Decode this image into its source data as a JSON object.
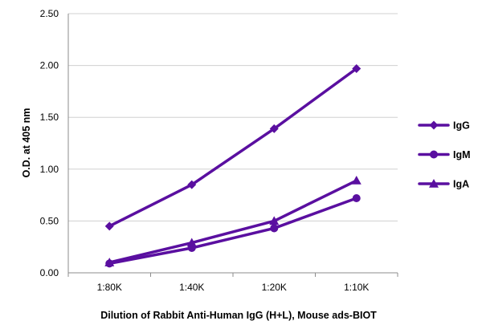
{
  "chart_data": {
    "type": "line",
    "title": "",
    "xlabel": "Dilution of Rabbit Anti-Human IgG (H+L), Mouse ads-BIOT",
    "ylabel": "O.D. at 405 nm",
    "categories": [
      "1:80K",
      "1:40K",
      "1:20K",
      "1:10K"
    ],
    "ylim": [
      0,
      2.5
    ],
    "yticks": [
      "0.00",
      "0.50",
      "1.00",
      "1.50",
      "2.00",
      "2.50"
    ],
    "ytick_values": [
      0,
      0.5,
      1.0,
      1.5,
      2.0,
      2.5
    ],
    "grid": true,
    "legend_position": "right",
    "series": [
      {
        "name": "IgG",
        "marker": "diamond",
        "color": "#5a0fa0",
        "values": [
          0.45,
          0.85,
          1.39,
          1.97
        ]
      },
      {
        "name": "IgM",
        "marker": "circle",
        "color": "#5a0fa0",
        "values": [
          0.09,
          0.24,
          0.43,
          0.72
        ]
      },
      {
        "name": "IgA",
        "marker": "triangle",
        "color": "#5a0fa0",
        "values": [
          0.1,
          0.29,
          0.5,
          0.89
        ]
      }
    ]
  }
}
